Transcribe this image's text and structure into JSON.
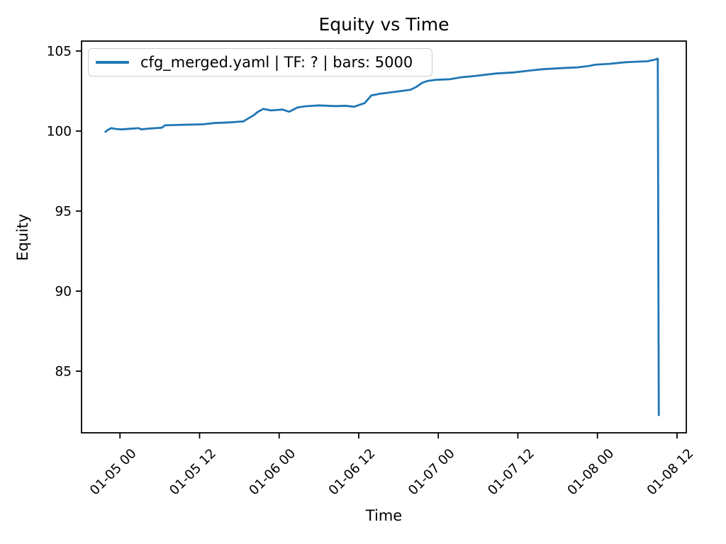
{
  "chart_data": {
    "type": "line",
    "title": "Equity vs Time",
    "xlabel": "Time",
    "ylabel": "Equity",
    "grid": false,
    "legend_position": "upper left",
    "line_color": "#1f77b4",
    "axis_color": "#000000",
    "legend_border_color": "#cccccc",
    "xlim_hours": [
      -5.8,
      85.4
    ],
    "ylim": [
      81.15,
      105.62
    ],
    "y_ticks": [
      85,
      90,
      95,
      100,
      105
    ],
    "x_ticks": [
      {
        "hour": 0,
        "label": "01-05 00"
      },
      {
        "hour": 12,
        "label": "01-05 12"
      },
      {
        "hour": 24,
        "label": "01-06 00"
      },
      {
        "hour": 36,
        "label": "01-06 12"
      },
      {
        "hour": 48,
        "label": "01-07 00"
      },
      {
        "hour": 60,
        "label": "01-07 12"
      },
      {
        "hour": 72,
        "label": "01-08 00"
      },
      {
        "hour": 84,
        "label": "01-08 12"
      }
    ],
    "series": [
      {
        "name": "cfg_merged.yaml | TF: ? | bars: 5000",
        "x_unit": "hours since 01-05 00:00",
        "points": [
          [
            -2.2,
            99.95
          ],
          [
            -1.8,
            100.08
          ],
          [
            -1.3,
            100.18
          ],
          [
            -0.6,
            100.13
          ],
          [
            0.2,
            100.1
          ],
          [
            1.5,
            100.14
          ],
          [
            2.8,
            100.18
          ],
          [
            3.2,
            100.1
          ],
          [
            4.2,
            100.15
          ],
          [
            6.3,
            100.21
          ],
          [
            6.8,
            100.36
          ],
          [
            9.5,
            100.39
          ],
          [
            12.5,
            100.42
          ],
          [
            14.2,
            100.5
          ],
          [
            16.5,
            100.54
          ],
          [
            18.6,
            100.6
          ],
          [
            19.3,
            100.78
          ],
          [
            20.2,
            101.0
          ],
          [
            20.8,
            101.2
          ],
          [
            21.6,
            101.38
          ],
          [
            22.8,
            101.29
          ],
          [
            24.5,
            101.34
          ],
          [
            25.5,
            101.21
          ],
          [
            26.8,
            101.48
          ],
          [
            28.0,
            101.55
          ],
          [
            30.0,
            101.6
          ],
          [
            32.5,
            101.56
          ],
          [
            34.0,
            101.58
          ],
          [
            35.3,
            101.52
          ],
          [
            36.9,
            101.75
          ],
          [
            37.9,
            102.22
          ],
          [
            39.2,
            102.33
          ],
          [
            41.5,
            102.45
          ],
          [
            43.8,
            102.58
          ],
          [
            44.7,
            102.76
          ],
          [
            45.6,
            103.02
          ],
          [
            46.4,
            103.13
          ],
          [
            47.6,
            103.2
          ],
          [
            49.8,
            103.24
          ],
          [
            51.4,
            103.36
          ],
          [
            53.3,
            103.43
          ],
          [
            55.4,
            103.53
          ],
          [
            56.8,
            103.6
          ],
          [
            59.3,
            103.66
          ],
          [
            61.8,
            103.78
          ],
          [
            63.6,
            103.86
          ],
          [
            66.5,
            103.93
          ],
          [
            69.0,
            103.98
          ],
          [
            70.8,
            104.07
          ],
          [
            71.6,
            104.14
          ],
          [
            73.8,
            104.2
          ],
          [
            76.3,
            104.3
          ],
          [
            79.5,
            104.36
          ],
          [
            80.6,
            104.45
          ],
          [
            81.0,
            104.51
          ],
          [
            81.1,
            104.52
          ],
          [
            81.25,
            82.25
          ]
        ]
      }
    ]
  }
}
